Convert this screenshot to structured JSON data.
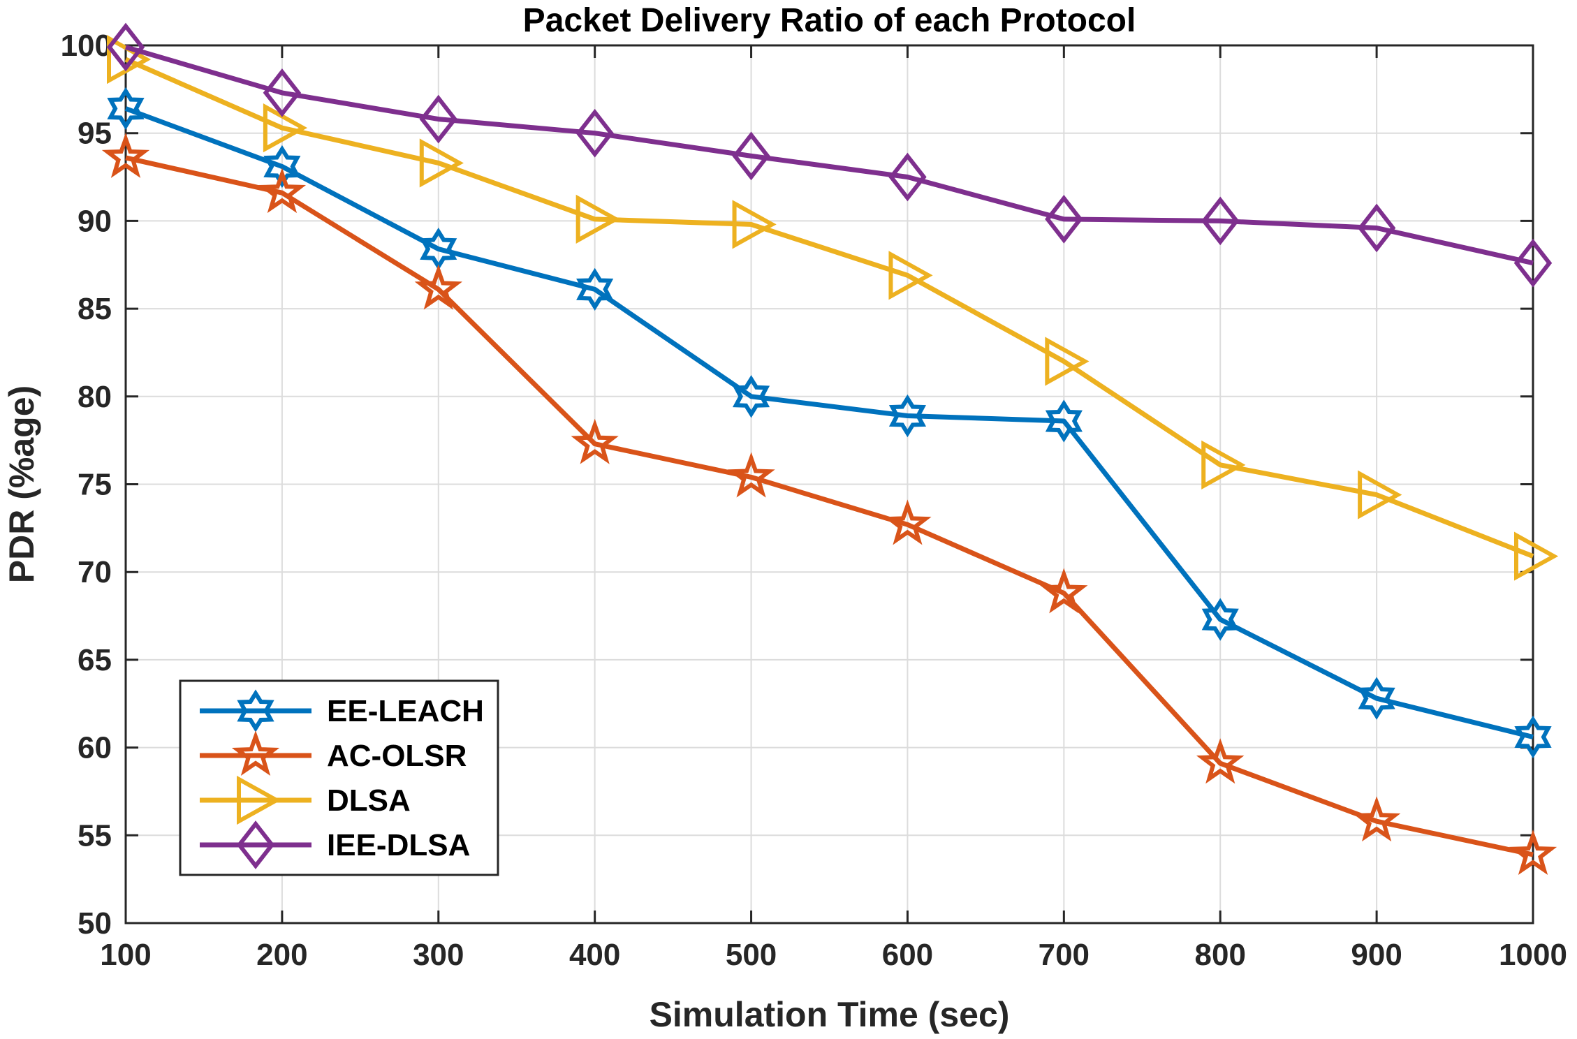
{
  "chart_data": {
    "type": "line",
    "title": "Packet Delivery Ratio of each Protocol",
    "xlabel": "Simulation Time (sec)",
    "ylabel": "PDR (%age)",
    "x": [
      100,
      200,
      300,
      400,
      500,
      600,
      700,
      800,
      900,
      1000
    ],
    "xlim": [
      100,
      1000
    ],
    "ylim": [
      50,
      100
    ],
    "xticks": [
      100,
      200,
      300,
      400,
      500,
      600,
      700,
      800,
      900,
      1000
    ],
    "yticks": [
      50,
      55,
      60,
      65,
      70,
      75,
      80,
      85,
      90,
      95,
      100
    ],
    "grid": true,
    "legend_position": "bottom-left",
    "series": [
      {
        "name": "EE-LEACH",
        "color": "#0072BD",
        "marker": "hexagram",
        "values": [
          96.4,
          93.1,
          88.4,
          86.1,
          80.0,
          78.9,
          78.6,
          67.3,
          62.8,
          60.6
        ]
      },
      {
        "name": "AC-OLSR",
        "color": "#D95319",
        "marker": "pentagram",
        "values": [
          93.6,
          91.6,
          86.1,
          77.3,
          75.4,
          72.7,
          68.8,
          59.1,
          55.8,
          53.9
        ]
      },
      {
        "name": "DLSA",
        "color": "#EDB120",
        "marker": "triangle-right",
        "values": [
          99.2,
          95.3,
          93.3,
          90.1,
          89.8,
          86.9,
          82.0,
          76.1,
          74.4,
          70.9
        ]
      },
      {
        "name": "IEE-DLSA",
        "color": "#7E2F8E",
        "marker": "diamond",
        "values": [
          99.9,
          97.3,
          95.8,
          95.0,
          93.7,
          92.5,
          90.1,
          90.0,
          89.6,
          87.6
        ]
      }
    ]
  }
}
